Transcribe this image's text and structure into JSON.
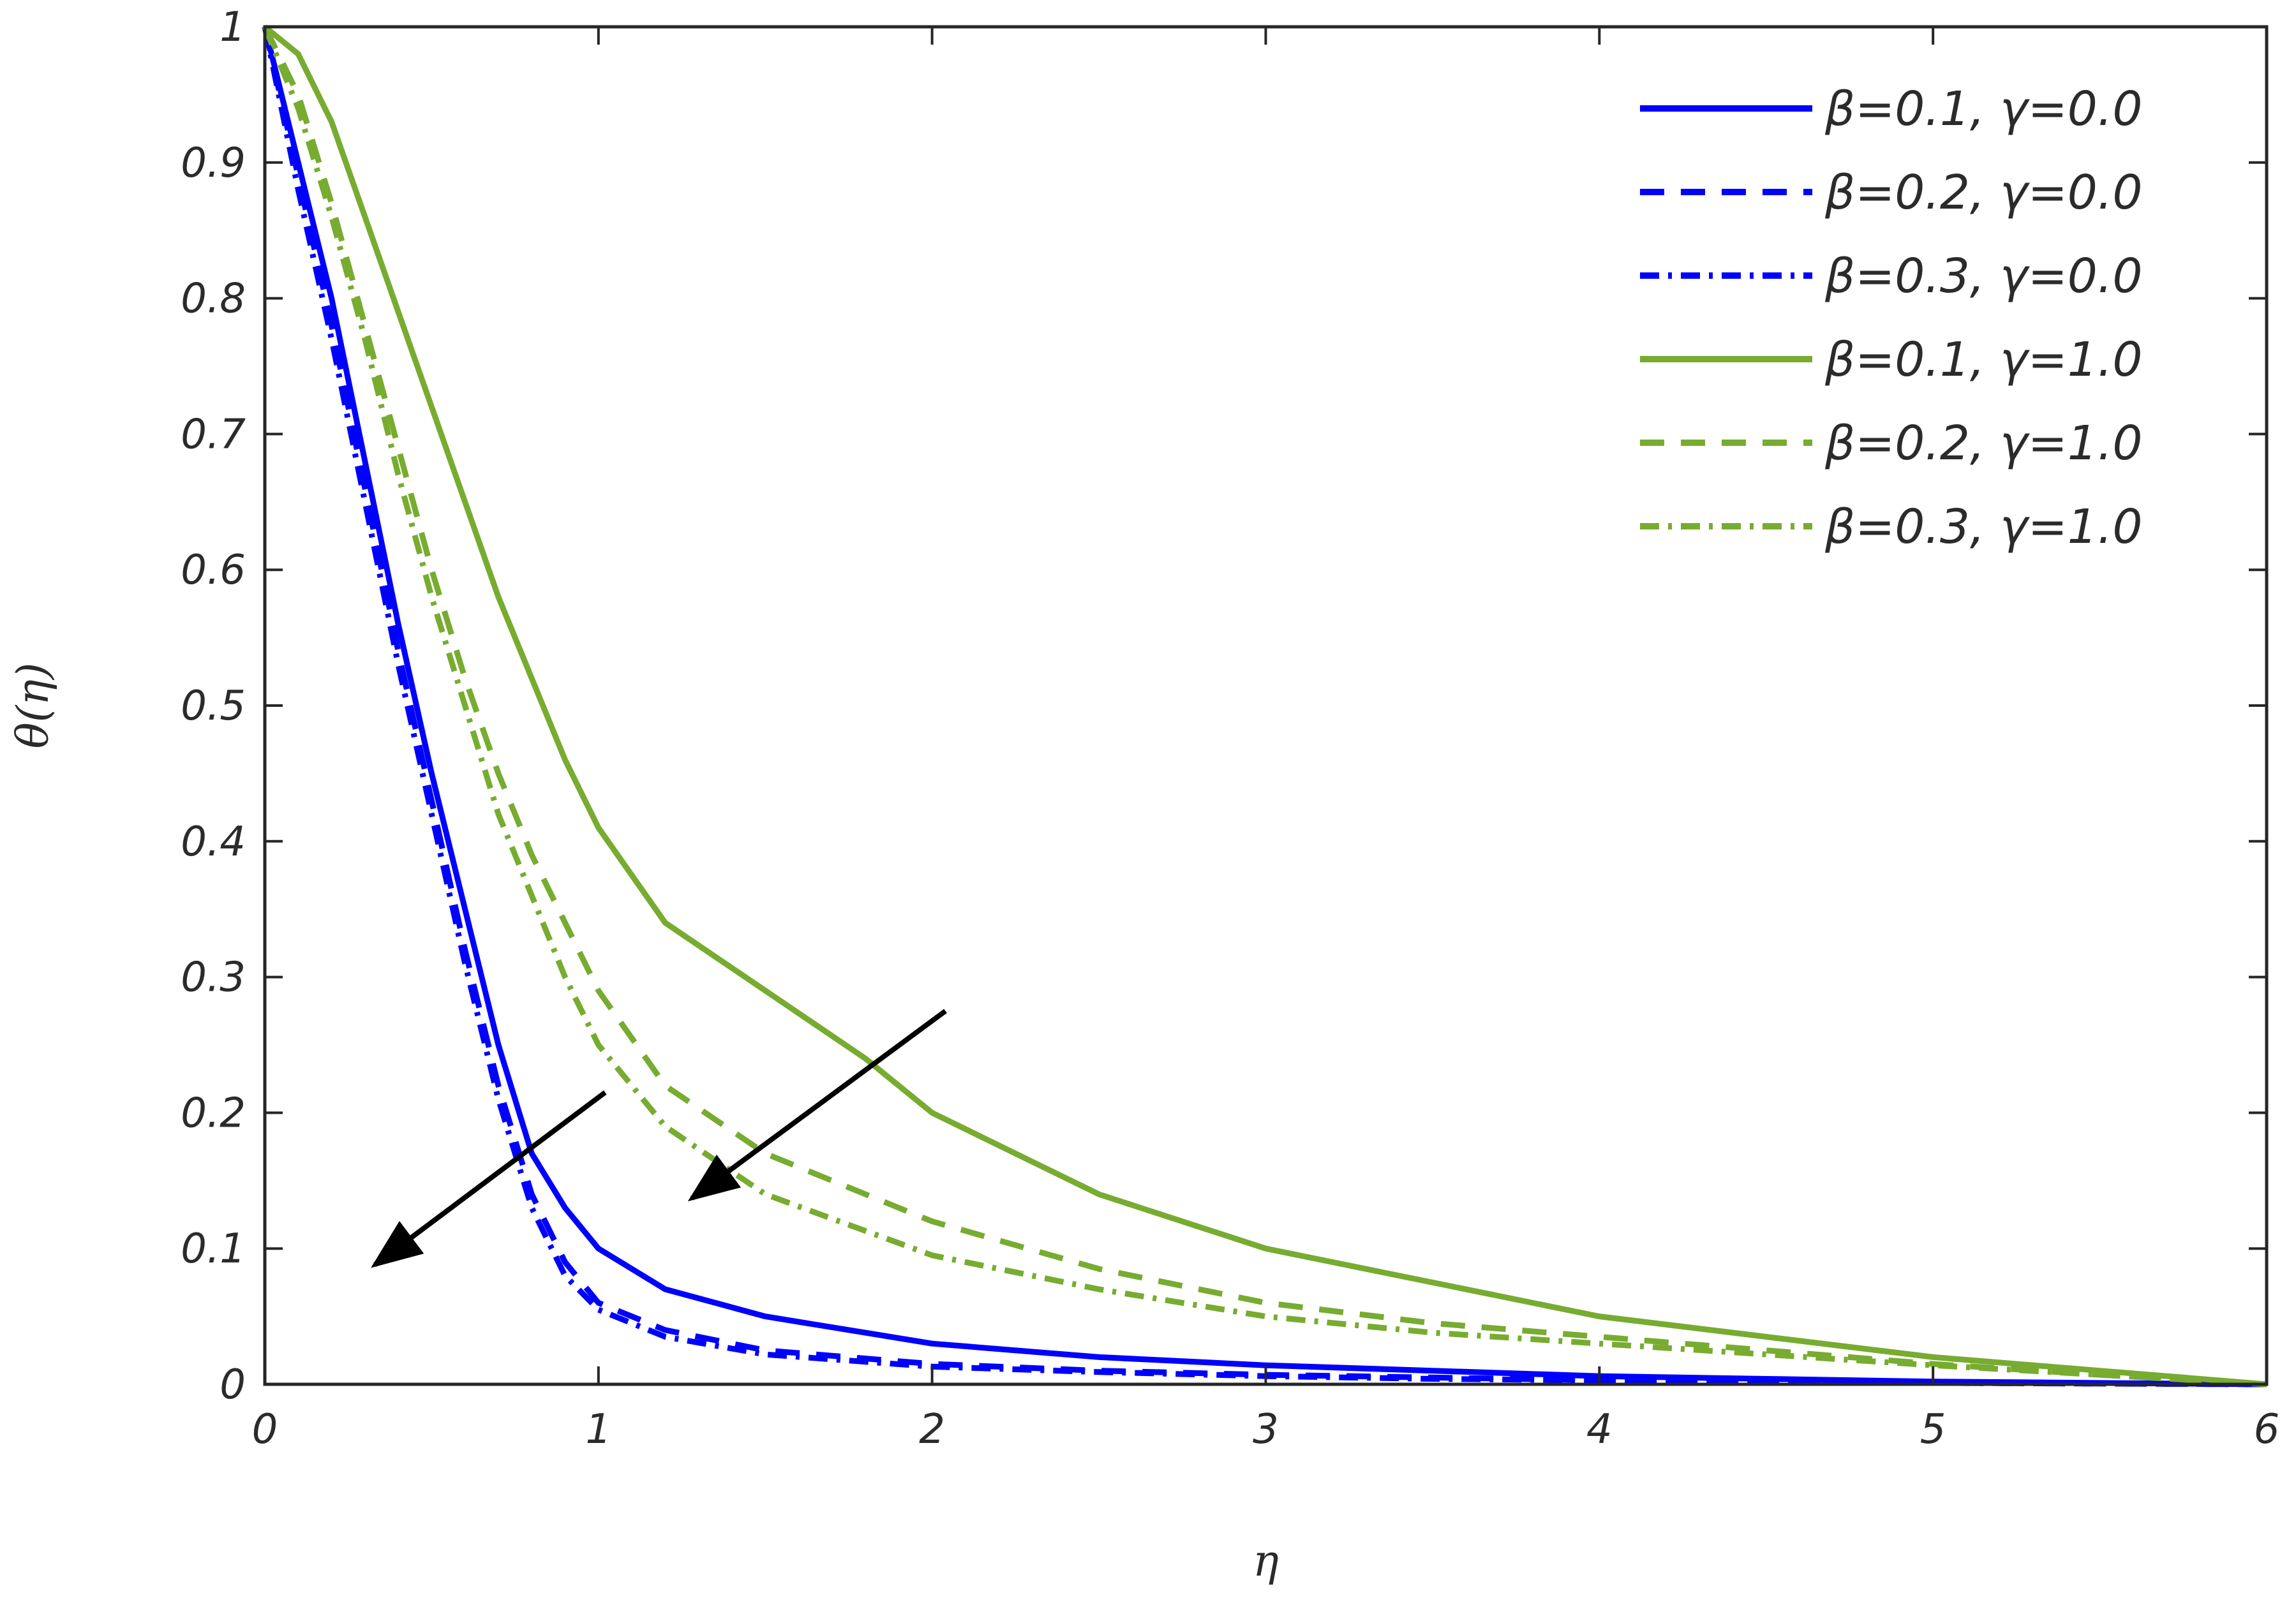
{
  "chart_data": {
    "type": "line",
    "xlabel": "η",
    "ylabel": "θ(η)",
    "xlim": [
      0,
      6
    ],
    "ylim": [
      0,
      1
    ],
    "xticks": [
      "0",
      "1",
      "2",
      "3",
      "4",
      "5",
      "6"
    ],
    "yticks": [
      "0",
      "0.1",
      "0.2",
      "0.3",
      "0.4",
      "0.5",
      "0.6",
      "0.7",
      "0.8",
      "0.9",
      "1"
    ],
    "grid": false,
    "legend_position": "top-right",
    "series": [
      {
        "name": "β=0.1, γ=0.0",
        "color": "#0000ff",
        "dash": "solid",
        "x": [
          0,
          0.1,
          0.2,
          0.3,
          0.4,
          0.5,
          0.6,
          0.7,
          0.8,
          0.9,
          1.0,
          1.2,
          1.5,
          2.0,
          2.5,
          3.0,
          3.5,
          4.0,
          4.5,
          5.0,
          5.5,
          6.0
        ],
        "y": [
          1.0,
          0.9,
          0.8,
          0.68,
          0.56,
          0.45,
          0.35,
          0.25,
          0.17,
          0.13,
          0.1,
          0.07,
          0.05,
          0.03,
          0.02,
          0.014,
          0.01,
          0.006,
          0.004,
          0.002,
          0.001,
          0.0
        ]
      },
      {
        "name": "β=0.2, γ=0.0",
        "color": "#0000ff",
        "dash": "dashed",
        "x": [
          0,
          0.1,
          0.2,
          0.3,
          0.4,
          0.5,
          0.6,
          0.7,
          0.8,
          0.9,
          1.0,
          1.2,
          1.5,
          2.0,
          2.5,
          3.0,
          3.5,
          4.0,
          4.5,
          5.0,
          5.5,
          6.0
        ],
        "y": [
          1.0,
          0.89,
          0.78,
          0.66,
          0.54,
          0.43,
          0.32,
          0.22,
          0.14,
          0.09,
          0.06,
          0.04,
          0.025,
          0.015,
          0.01,
          0.007,
          0.005,
          0.003,
          0.002,
          0.001,
          0.0005,
          0.0
        ]
      },
      {
        "name": "β=0.3, γ=0.0",
        "color": "#0000ff",
        "dash": "dashdot",
        "x": [
          0,
          0.1,
          0.2,
          0.3,
          0.4,
          0.5,
          0.6,
          0.7,
          0.8,
          0.9,
          1.0,
          1.2,
          1.5,
          2.0,
          2.5,
          3.0,
          3.5,
          4.0,
          4.5,
          5.0,
          5.5,
          6.0
        ],
        "y": [
          1.0,
          0.88,
          0.77,
          0.65,
          0.53,
          0.42,
          0.31,
          0.21,
          0.13,
          0.08,
          0.055,
          0.035,
          0.022,
          0.013,
          0.009,
          0.006,
          0.004,
          0.003,
          0.002,
          0.001,
          0.0005,
          0.0
        ]
      },
      {
        "name": "β=0.1, γ=1.0",
        "color": "#77ac30",
        "dash": "solid",
        "x": [
          0,
          0.1,
          0.2,
          0.3,
          0.4,
          0.5,
          0.6,
          0.7,
          0.8,
          0.9,
          1.0,
          1.2,
          1.5,
          1.8,
          2.0,
          2.5,
          3.0,
          3.5,
          4.0,
          4.5,
          5.0,
          5.5,
          6.0
        ],
        "y": [
          1.0,
          0.98,
          0.93,
          0.86,
          0.79,
          0.72,
          0.65,
          0.58,
          0.52,
          0.46,
          0.41,
          0.34,
          0.29,
          0.24,
          0.2,
          0.14,
          0.1,
          0.075,
          0.05,
          0.035,
          0.02,
          0.01,
          0.0
        ]
      },
      {
        "name": "β=0.2, γ=1.0",
        "color": "#77ac30",
        "dash": "dashed",
        "x": [
          0,
          0.1,
          0.2,
          0.3,
          0.4,
          0.5,
          0.6,
          0.7,
          0.8,
          0.9,
          1.0,
          1.2,
          1.5,
          2.0,
          2.5,
          3.0,
          3.5,
          4.0,
          4.5,
          5.0,
          5.5,
          6.0
        ],
        "y": [
          1.0,
          0.95,
          0.87,
          0.78,
          0.69,
          0.6,
          0.52,
          0.45,
          0.39,
          0.34,
          0.29,
          0.22,
          0.17,
          0.12,
          0.085,
          0.06,
          0.045,
          0.035,
          0.025,
          0.015,
          0.007,
          0.0
        ]
      },
      {
        "name": "β=0.3, γ=1.0",
        "color": "#77ac30",
        "dash": "dashdot",
        "x": [
          0,
          0.1,
          0.2,
          0.3,
          0.4,
          0.5,
          0.6,
          0.7,
          0.8,
          0.9,
          1.0,
          1.2,
          1.5,
          2.0,
          2.5,
          3.0,
          3.5,
          4.0,
          4.5,
          5.0,
          5.5,
          6.0
        ],
        "y": [
          1.0,
          0.94,
          0.86,
          0.77,
          0.67,
          0.58,
          0.5,
          0.42,
          0.36,
          0.3,
          0.25,
          0.19,
          0.14,
          0.095,
          0.07,
          0.05,
          0.038,
          0.03,
          0.022,
          0.014,
          0.007,
          0.0
        ]
      }
    ],
    "annotations": [
      {
        "type": "arrow",
        "from": [
          1.02,
          0.215
        ],
        "to": [
          0.33,
          0.088
        ]
      },
      {
        "type": "arrow",
        "from": [
          2.04,
          0.275
        ],
        "to": [
          1.28,
          0.137
        ]
      }
    ]
  }
}
